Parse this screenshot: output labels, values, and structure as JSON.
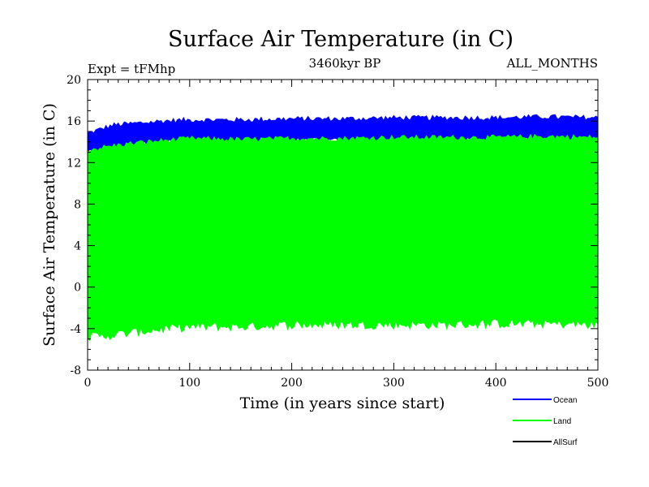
{
  "chart_data": {
    "type": "area",
    "title": "Surface Air Temperature (in C)",
    "subtitle_left": "Expt = tFMhp",
    "subtitle_center": "3460kyr BP",
    "subtitle_right": "ALL_MONTHS",
    "xlabel": "Time (in years since start)",
    "ylabel": "Surface Air Temperature (in C)",
    "xlim": [
      0,
      500
    ],
    "ylim": [
      -8,
      20
    ],
    "x_ticks": [
      "0",
      "100",
      "200",
      "300",
      "400",
      "500"
    ],
    "y_ticks": [
      "-8",
      "-4",
      "0",
      "4",
      "8",
      "12",
      "16",
      "20"
    ],
    "x": [
      0,
      25,
      50,
      75,
      100,
      150,
      200,
      250,
      300,
      350,
      400,
      450,
      500
    ],
    "series": [
      {
        "name": "Ocean",
        "color": "#0000ff",
        "upper": [
          14.8,
          15.6,
          15.8,
          16.0,
          16.1,
          16.1,
          16.2,
          16.2,
          16.3,
          16.3,
          16.3,
          16.4,
          16.3
        ],
        "lower": [
          13.0,
          13.5,
          13.8,
          14.0,
          14.1,
          14.0,
          14.2,
          14.1,
          14.2,
          14.2,
          14.2,
          14.3,
          14.2
        ]
      },
      {
        "name": "Land",
        "color": "#00ff00",
        "upper": [
          13.2,
          13.6,
          13.9,
          14.1,
          14.3,
          14.2,
          14.3,
          14.3,
          14.4,
          14.4,
          14.4,
          14.5,
          14.4
        ],
        "lower": [
          -4.8,
          -4.6,
          -4.3,
          -4.0,
          -3.8,
          -3.8,
          -3.6,
          -3.6,
          -3.6,
          -3.6,
          -3.5,
          -3.5,
          -3.6
        ]
      },
      {
        "name": "AllSurf",
        "color": "#000000",
        "upper": [],
        "lower": []
      }
    ],
    "legend": {
      "placement": "bottom-right"
    }
  }
}
